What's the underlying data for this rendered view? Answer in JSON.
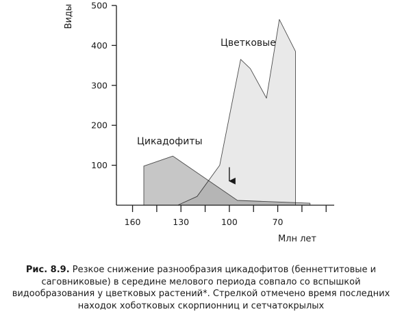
{
  "chart_data": {
    "type": "area",
    "xlabel": "Млн лет",
    "ylabel": "Виды",
    "xlim": [
      170,
      35
    ],
    "ylim": [
      0,
      500
    ],
    "x_ticks": [
      160,
      130,
      100,
      70
    ],
    "x_minor_ticks": [
      160,
      145,
      130,
      115,
      100,
      85,
      70,
      55,
      40
    ],
    "y_ticks": [
      100,
      200,
      300,
      400,
      500
    ],
    "grid": false,
    "series": [
      {
        "name": "Цикадофиты",
        "color": "#c6c6c6",
        "points": [
          [
            153,
            0
          ],
          [
            153,
            98
          ],
          [
            135,
            123
          ],
          [
            95,
            12
          ],
          [
            50,
            5
          ],
          [
            50,
            0
          ]
        ]
      },
      {
        "name": "Цветковые",
        "color": "#e9e9e9",
        "points": [
          [
            132,
            0
          ],
          [
            120,
            22
          ],
          [
            106,
            100
          ],
          [
            93,
            365
          ],
          [
            87,
            342
          ],
          [
            77,
            268
          ],
          [
            69,
            465
          ],
          [
            59,
            385
          ],
          [
            59,
            0
          ]
        ]
      }
    ],
    "annotations": [
      {
        "type": "arrow",
        "x": 100,
        "y_from": 95,
        "y_to": 45
      }
    ]
  },
  "caption": {
    "label": "Рис. 8.9.",
    "text": " Резкое снижение разнообразия цикадофитов (беннеттитовые и саговниковые) в середине мелового периода совпало со вспышкой видообразования у цветковых растений*. Стрелкой отмечено время последних находок хоботковых скорпионниц и сетчатокрылых"
  }
}
